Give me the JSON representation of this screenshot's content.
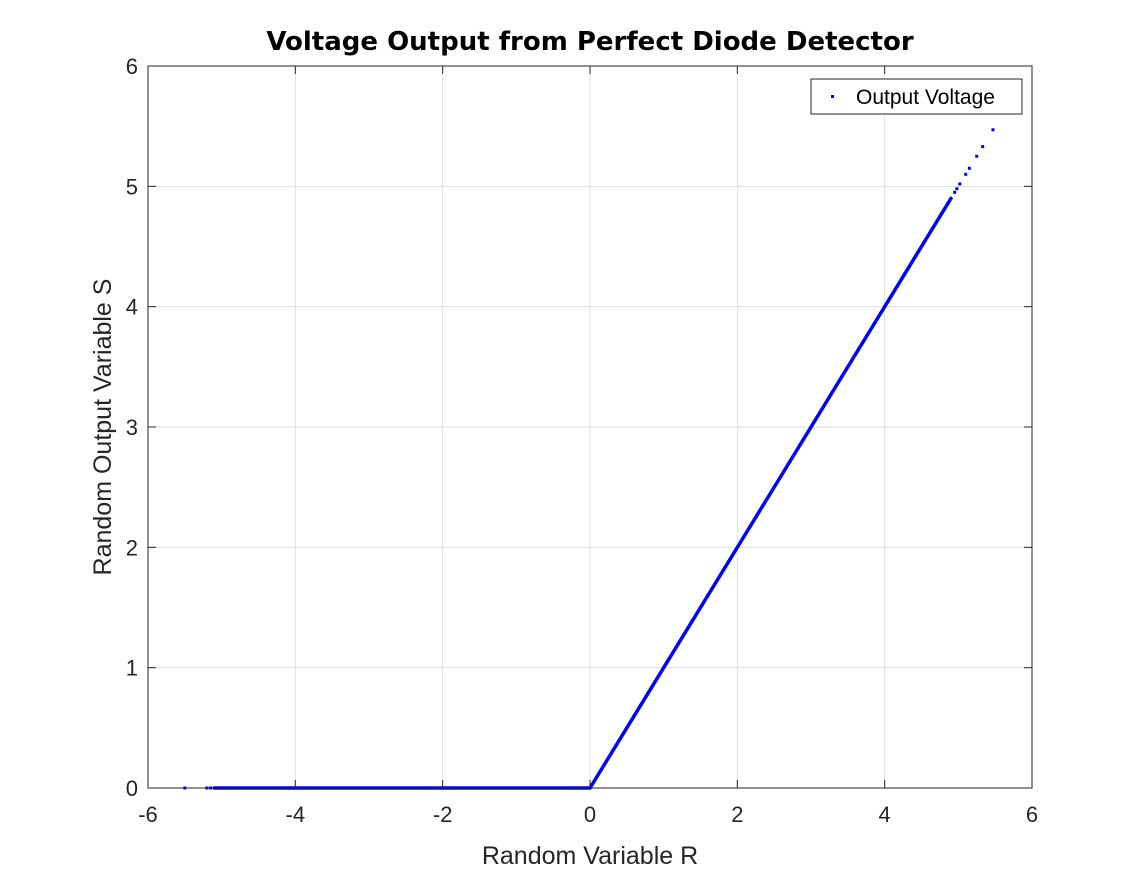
{
  "chart_data": {
    "type": "scatter",
    "title": "Voltage Output from Perfect Diode Detector",
    "xlabel": "Random Variable R",
    "ylabel": "Random Output Variable S",
    "xlim": [
      -6,
      6
    ],
    "ylim": [
      0,
      6
    ],
    "xticks": [
      -6,
      -4,
      -2,
      0,
      2,
      4,
      6
    ],
    "yticks": [
      0,
      1,
      2,
      3,
      4,
      5,
      6
    ],
    "grid": true,
    "legend": {
      "position": "top-right",
      "entries": [
        "Output Voltage"
      ]
    },
    "series": [
      {
        "name": "Output Voltage",
        "color": "#0000ff",
        "marker": "point",
        "dense_segments": [
          {
            "x": [
              -5.1,
              0
            ],
            "y": [
              0,
              0
            ]
          },
          {
            "x": [
              0,
              4.9
            ],
            "y": [
              0,
              4.9
            ]
          }
        ],
        "outliers": [
          {
            "x": -5.5,
            "y": 0
          },
          {
            "x": -5.2,
            "y": 0
          },
          {
            "x": -5.15,
            "y": 0
          },
          {
            "x": 4.95,
            "y": 4.95
          },
          {
            "x": 4.98,
            "y": 4.98
          },
          {
            "x": 5.02,
            "y": 5.02
          },
          {
            "x": 5.1,
            "y": 5.1
          },
          {
            "x": 5.15,
            "y": 5.15
          },
          {
            "x": 5.25,
            "y": 5.25
          },
          {
            "x": 5.33,
            "y": 5.33
          },
          {
            "x": 5.47,
            "y": 5.47
          }
        ]
      }
    ]
  }
}
